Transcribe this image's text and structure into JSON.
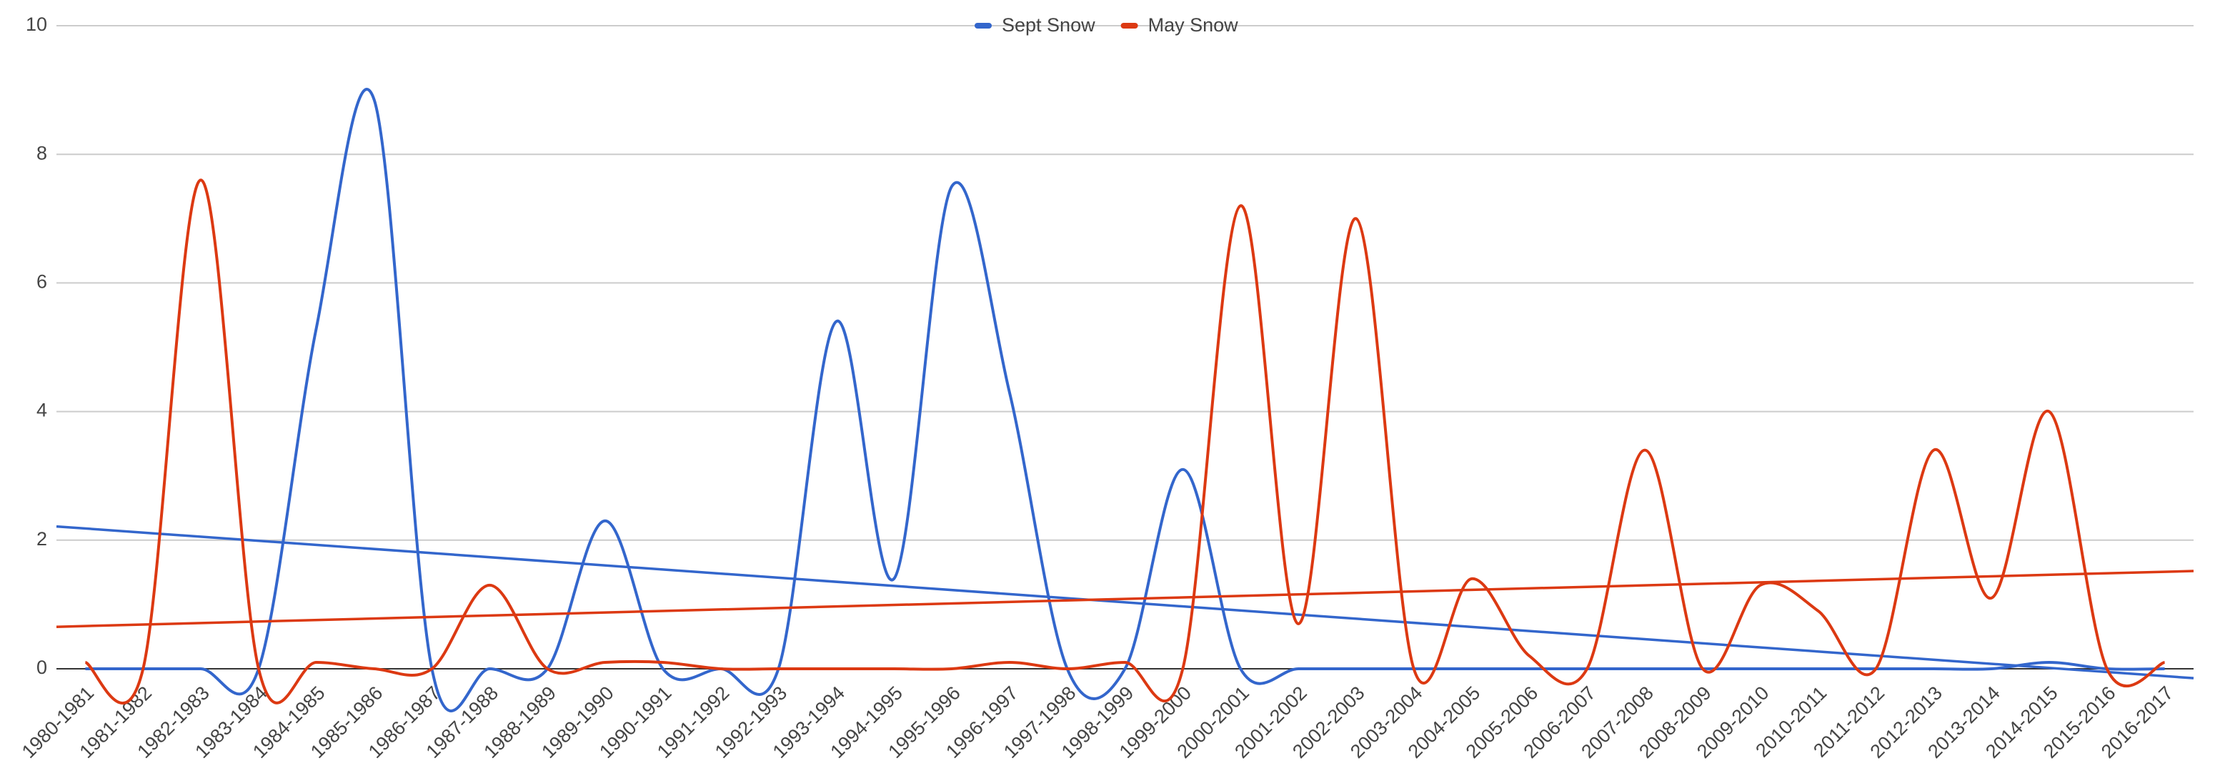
{
  "chart_data": {
    "type": "line",
    "curve": "smooth",
    "trendline": true,
    "grid": true,
    "legend": "top",
    "categories": [
      "1980-1981",
      "1981-1982",
      "1982-1983",
      "1983-1984",
      "1984-1985",
      "1985-1986",
      "1986-1987",
      "1987-1988",
      "1988-1989",
      "1989-1990",
      "1990-1991",
      "1991-1992",
      "1992-1993",
      "1993-1994",
      "1994-1995",
      "1995-1996",
      "1996-1997",
      "1997-1998",
      "1998-1999",
      "1999-2000",
      "2000-2001",
      "2001-2002",
      "2002-2003",
      "2003-2004",
      "2004-2005",
      "2005-2006",
      "2006-2007",
      "2007-2008",
      "2008-2009",
      "2009-2010",
      "2010-2011",
      "2011-2012",
      "2012-2013",
      "2013-2014",
      "2014-2015",
      "2015-2016",
      "2016-2017"
    ],
    "series": [
      {
        "name": "Sept Snow",
        "color": "#3366cc",
        "values": [
          0,
          0,
          0,
          0,
          5.3,
          8.85,
          0,
          0,
          0,
          2.3,
          0,
          0,
          0,
          5.4,
          1.4,
          7.5,
          4.3,
          0,
          0,
          3.1,
          0,
          0,
          0,
          0,
          0,
          0,
          0,
          0,
          0,
          0,
          0,
          0,
          0,
          0,
          0.1,
          0,
          0
        ]
      },
      {
        "name": "May Snow",
        "color": "#dc3912",
        "values": [
          0.1,
          0,
          7.6,
          0,
          0.1,
          0,
          0,
          1.3,
          0,
          0.1,
          0.1,
          0,
          0,
          0,
          0,
          0,
          0.1,
          0,
          0.1,
          0,
          7.2,
          0.7,
          7.0,
          0,
          1.4,
          0.2,
          0,
          3.4,
          0,
          1.3,
          0.9,
          0,
          3.4,
          1.1,
          4.0,
          0,
          0.1
        ]
      }
    ],
    "ylim": [
      0,
      10
    ],
    "yticks": [
      0,
      2,
      4,
      6,
      8,
      10
    ]
  }
}
